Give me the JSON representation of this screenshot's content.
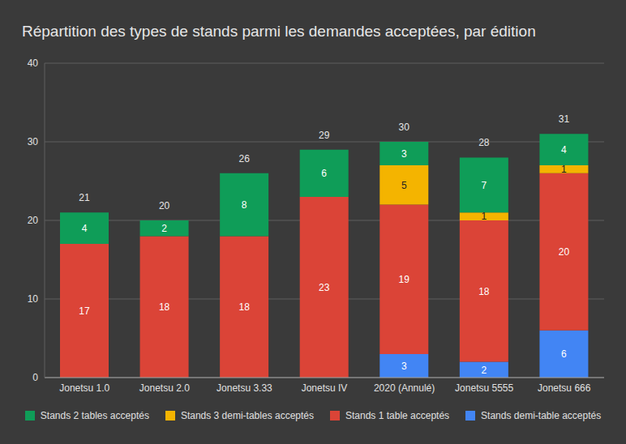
{
  "chart_data": {
    "type": "bar",
    "title": "Répartition des types de stands parmi les demandes acceptées, par édition",
    "categories": [
      "Jonetsu 1.0",
      "Jonetsu 2.0",
      "Jonetsu 3.33",
      "Jonetsu IV",
      "2020 (Annulé)",
      "Jonetsu 5555",
      "Jonetsu 666"
    ],
    "series": [
      {
        "name": "Stands demi-table acceptés",
        "color": "#4285f4",
        "values": [
          null,
          null,
          null,
          null,
          3,
          2,
          6
        ]
      },
      {
        "name": "Stands 1 table acceptés",
        "color": "#db4437",
        "values": [
          17,
          18,
          18,
          23,
          19,
          18,
          20
        ]
      },
      {
        "name": "Stands 3 demi-tables acceptés",
        "color": "#f4b400",
        "values": [
          null,
          null,
          null,
          null,
          5,
          1,
          1
        ]
      },
      {
        "name": "Stands 2 tables acceptés",
        "color": "#0f9d58",
        "values": [
          4,
          2,
          8,
          6,
          3,
          7,
          4
        ]
      }
    ],
    "totals": [
      21,
      20,
      26,
      29,
      30,
      28,
      31
    ],
    "stacked": true,
    "data_labels": true,
    "grid": true,
    "legend": "bottom",
    "ylim": [
      0,
      40
    ],
    "yticks": [
      0,
      10,
      20,
      30,
      40
    ]
  }
}
